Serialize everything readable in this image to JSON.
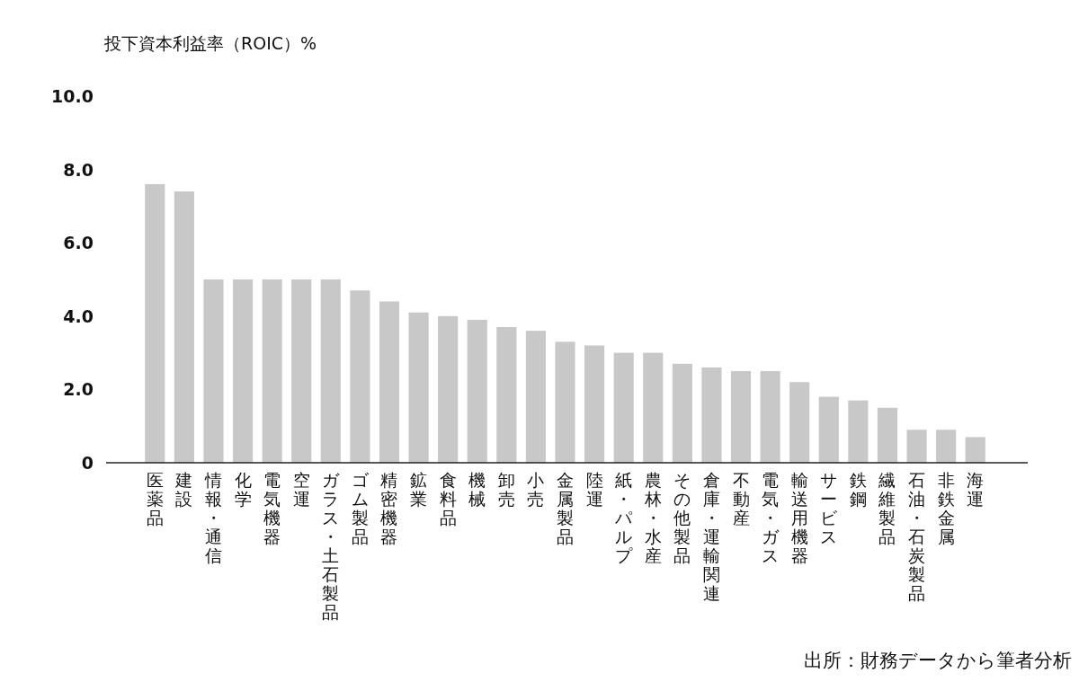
{
  "chart_data": {
    "type": "bar",
    "ylabel": "投下資本利益率（ROIC）%",
    "categories": [
      "医薬品",
      "建設",
      "情報・通信",
      "化学",
      "電気機器",
      "空運",
      "ガラス・土石製品",
      "ゴム製品",
      "精密機器",
      "鉱業",
      "食料品",
      "機械",
      "卸売",
      "小売",
      "金属製品",
      "陸運",
      "紙・パルプ",
      "農林・水産",
      "その他製品",
      "倉庫・運輸関連",
      "不動産",
      "電気・ガス",
      "輸送用機器",
      "サービス",
      "鉄鋼",
      "繊維製品",
      "石油・石炭製品",
      "非鉄金属",
      "海運"
    ],
    "values": [
      7.6,
      7.4,
      5.0,
      5.0,
      5.0,
      5.0,
      5.0,
      4.7,
      4.4,
      4.1,
      4.0,
      3.9,
      3.7,
      3.6,
      3.3,
      3.2,
      3.0,
      3.0,
      2.7,
      2.6,
      2.5,
      2.5,
      2.2,
      1.8,
      1.7,
      1.5,
      0.9,
      0.9,
      0.7
    ],
    "color": "#c8c8c8",
    "ylim": [
      0,
      10
    ],
    "yticks": [
      0,
      {
        "value": 2,
        "label": "2.0"
      },
      {
        "value": 4,
        "label": "4.0"
      },
      {
        "value": 6,
        "label": "6.0"
      },
      {
        "value": 8,
        "label": "8.0"
      },
      {
        "value": 10,
        "label": "10.0"
      }
    ],
    "grid": false,
    "annotations": [
      "出所：財務データから筆者分析"
    ]
  }
}
